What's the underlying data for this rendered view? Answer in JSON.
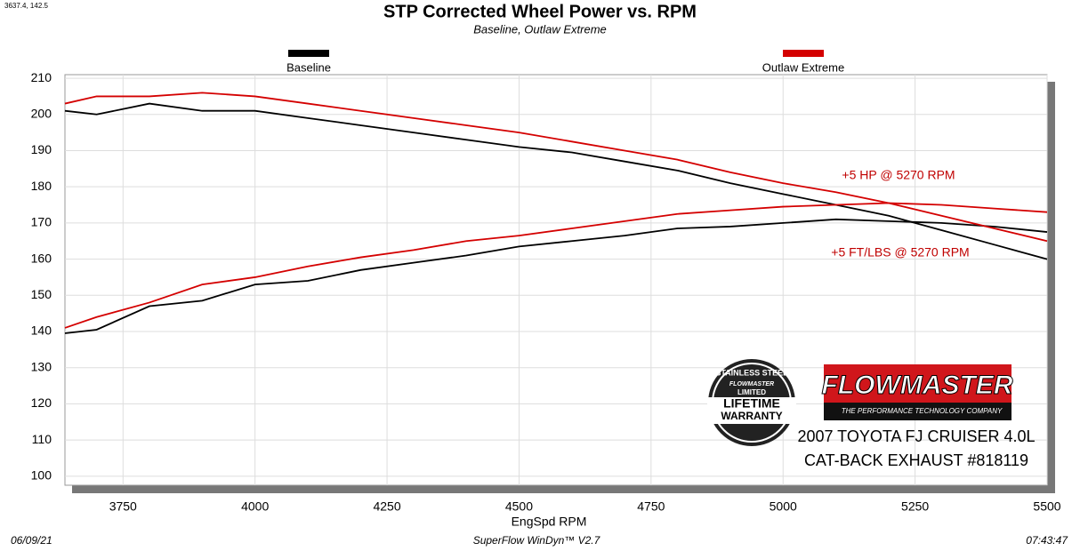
{
  "header": {
    "cursor": "3637.4, 142.5"
  },
  "chart_data": {
    "type": "line",
    "title": "STP Corrected Wheel Power vs. RPM",
    "subtitle": "Baseline, Outlaw Extreme",
    "xlabel": "EngSpd  RPM",
    "x": [
      3640,
      3700,
      3800,
      3900,
      4000,
      4100,
      4200,
      4300,
      4400,
      4500,
      4600,
      4700,
      4800,
      4900,
      5000,
      5100,
      5200,
      5300,
      5400,
      5500
    ],
    "series": [
      {
        "name": "Baseline",
        "color": "#000000",
        "values": [
          201,
          200,
          203,
          201,
          201,
          199,
          197,
          195,
          193,
          191,
          189.5,
          187,
          184.5,
          181,
          178,
          175,
          172,
          168,
          164,
          160
        ],
        "values_2": [
          139.5,
          140.5,
          147,
          148.5,
          153,
          154,
          157,
          159,
          161,
          163.5,
          165,
          166.5,
          168.5,
          169,
          170,
          171,
          170.5,
          170,
          169,
          167.5
        ]
      },
      {
        "name": "Outlaw Extreme",
        "color": "#d40000",
        "values": [
          203,
          205,
          205,
          206,
          205,
          203,
          201,
          199,
          197,
          195,
          192.5,
          190,
          187.5,
          184,
          181,
          178.5,
          175.5,
          172,
          168.5,
          165
        ],
        "values_2": [
          141,
          144,
          148,
          153,
          155,
          158,
          160.5,
          162.5,
          165,
          166.5,
          168.5,
          170.5,
          172.5,
          173.5,
          174.5,
          175,
          175.5,
          175,
          174,
          173
        ]
      }
    ],
    "annotations": [
      "+5 HP @ 5270 RPM",
      "+5 FT/LBS @ 5270 RPM"
    ],
    "xlim": [
      3640,
      5500
    ],
    "xticks": [
      3750,
      4000,
      4250,
      4500,
      4750,
      5000,
      5250,
      5500
    ],
    "ylim": [
      97.5,
      211
    ],
    "yticks": [
      100,
      110,
      120,
      130,
      140,
      150,
      160,
      170,
      180,
      190,
      200,
      210
    ],
    "grid": true
  },
  "logos": {
    "warranty": [
      "STAINLESS STEEL",
      "FLOWMASTER",
      "LIMITED",
      "LIFETIME",
      "WARRANTY"
    ],
    "brand": "FLOWMASTER",
    "tagline": "THE PERFORMANCE TECHNOLOGY COMPANY"
  },
  "vehicle": [
    "2007 TOYOTA FJ CRUISER 4.0L",
    "CAT-BACK EXHAUST #818119"
  ],
  "footer": {
    "date": "06/09/21",
    "software": "SuperFlow WinDyn™ V2.7",
    "time": "07:43:47"
  }
}
